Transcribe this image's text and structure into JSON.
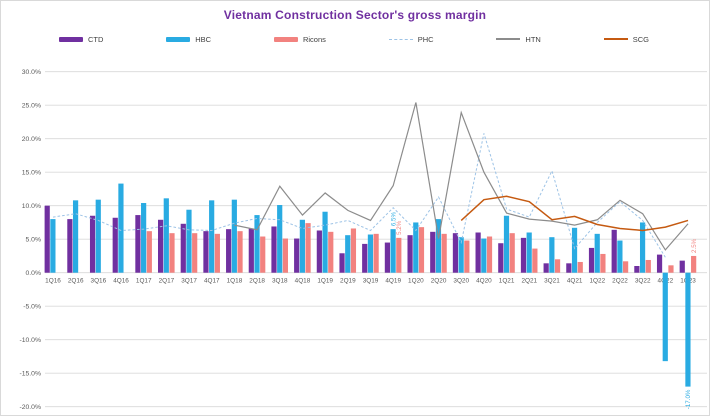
{
  "window": {
    "title": "Vietnam Construction Sector's gross margin chart"
  },
  "chart_data": {
    "type": "combo-bar-line",
    "title": "Vietnam Construction Sector's gross margin",
    "xlabel": "",
    "ylabel": "",
    "y_axis": {
      "min": -20,
      "max": 30,
      "step": 5,
      "tick_format": "0.0%"
    },
    "grid": true,
    "legend_position": "top",
    "categories": [
      "1Q16",
      "2Q16",
      "3Q16",
      "4Q16",
      "1Q17",
      "2Q17",
      "3Q17",
      "4Q17",
      "1Q18",
      "2Q18",
      "3Q18",
      "4Q18",
      "1Q19",
      "2Q19",
      "3Q19",
      "4Q19",
      "1Q20",
      "2Q20",
      "3Q20",
      "4Q20",
      "1Q21",
      "2Q21",
      "3Q21",
      "4Q21",
      "1Q22",
      "2Q22",
      "3Q22",
      "4Q22",
      "1Q23"
    ],
    "legend": [
      {
        "label": "CTD",
        "color": "#7030a0",
        "marker": "bar"
      },
      {
        "label": "HBC",
        "color": "#29abe2",
        "marker": "bar"
      },
      {
        "label": "Ricons",
        "color": "#f2827f",
        "marker": "bar"
      },
      {
        "label": "PHC",
        "color": "#9dc3e6",
        "marker": "dash"
      },
      {
        "label": "HTN",
        "color": "#8c8c8c",
        "marker": "line"
      },
      {
        "label": "SCG",
        "color": "#c55a11",
        "marker": "line"
      }
    ],
    "bar_series": [
      {
        "name": "CTD",
        "color": "#7030a0",
        "values": [
          10.0,
          8.0,
          8.5,
          8.2,
          8.6,
          7.9,
          7.3,
          6.2,
          6.5,
          6.6,
          6.9,
          5.1,
          6.3,
          2.9,
          4.3,
          4.5,
          5.6,
          6.1,
          5.9,
          6.0,
          4.4,
          5.2,
          1.4,
          1.4,
          3.7,
          6.4,
          1.0,
          2.7,
          1.8
        ]
      },
      {
        "name": "HBC",
        "color": "#29abe2",
        "values": [
          8.0,
          10.8,
          10.9,
          13.3,
          10.4,
          11.1,
          9.4,
          10.8,
          10.9,
          8.6,
          10.1,
          7.9,
          9.1,
          5.6,
          5.7,
          6.5,
          7.5,
          8.0,
          5.3,
          5.1,
          8.5,
          6.0,
          5.3,
          6.7,
          5.8,
          4.8,
          7.5,
          -13.2,
          -17.0
        ]
      },
      {
        "name": "Ricons",
        "color": "#f2827f",
        "values": [
          null,
          null,
          null,
          null,
          6.2,
          5.9,
          5.9,
          5.8,
          6.2,
          5.4,
          5.1,
          7.4,
          6.1,
          6.6,
          5.8,
          5.2,
          6.8,
          5.8,
          4.8,
          5.4,
          5.9,
          3.6,
          2.0,
          1.6,
          2.8,
          1.7,
          1.9,
          1.1,
          2.5
        ]
      }
    ],
    "line_series": [
      {
        "name": "PHC",
        "color": "#9dc3e6",
        "style": "dashed",
        "values": [
          8.3,
          8.8,
          7.8,
          6.3,
          6.5,
          7.0,
          6.4,
          6.3,
          7.4,
          8.1,
          7.9,
          6.6,
          7.1,
          7.8,
          6.3,
          9.7,
          6.3,
          11.3,
          4.5,
          20.8,
          9.5,
          8.3,
          15.2,
          3.6,
          7.5,
          10.6,
          7.8,
          2.3,
          null
        ]
      },
      {
        "name": "HTN",
        "color": "#8c8c8c",
        "style": "solid",
        "values": [
          null,
          null,
          null,
          null,
          null,
          null,
          null,
          null,
          7.1,
          6.4,
          12.9,
          8.6,
          11.9,
          9.3,
          7.8,
          13.0,
          25.4,
          5.1,
          23.9,
          15.0,
          8.9,
          8.0,
          7.7,
          7.1,
          7.9,
          10.8,
          8.8,
          3.4,
          7.3
        ]
      },
      {
        "name": "SCG",
        "color": "#c55a11",
        "style": "solid",
        "values": [
          null,
          null,
          null,
          null,
          null,
          null,
          null,
          null,
          null,
          null,
          null,
          null,
          null,
          null,
          null,
          null,
          null,
          null,
          7.8,
          10.9,
          11.4,
          10.6,
          7.9,
          8.4,
          7.2,
          6.6,
          6.3,
          6.8,
          7.8
        ]
      }
    ],
    "data_labels": [
      {
        "text": "6.5%",
        "series": "HBC",
        "category": "4Q19",
        "position": "above"
      },
      {
        "text": "5.2%",
        "series": "Ricons",
        "category": "4Q19",
        "position": "above"
      },
      {
        "text": "2.5%",
        "series": "Ricons",
        "category": "1Q23",
        "position": "above"
      },
      {
        "text": "-17.0%",
        "series": "HBC",
        "category": "1Q23",
        "position": "below"
      }
    ]
  }
}
